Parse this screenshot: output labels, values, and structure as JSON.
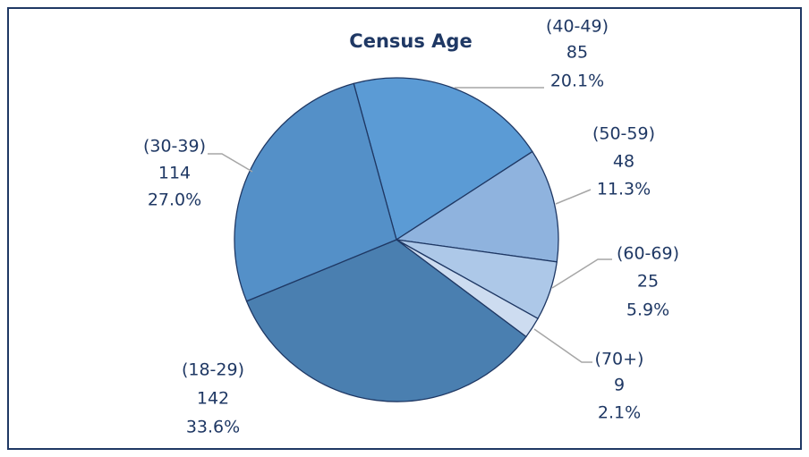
{
  "chart_data": {
    "type": "pie",
    "title": "Census Age",
    "categories": [
      "(40-49)",
      "(50-59)",
      "(60-69)",
      "(70+)",
      "(18-29)",
      "(30-39)"
    ],
    "values": [
      85,
      48,
      25,
      9,
      142,
      114
    ],
    "percent_labels": [
      "20.1%",
      "11.3%",
      "5.9%",
      "2.1%",
      "33.6%",
      "27.0%"
    ],
    "colors": [
      "#5b9bd5",
      "#8fb3de",
      "#adc8e8",
      "#cddcf0",
      "#4a7fb0",
      "#5490c8"
    ]
  }
}
